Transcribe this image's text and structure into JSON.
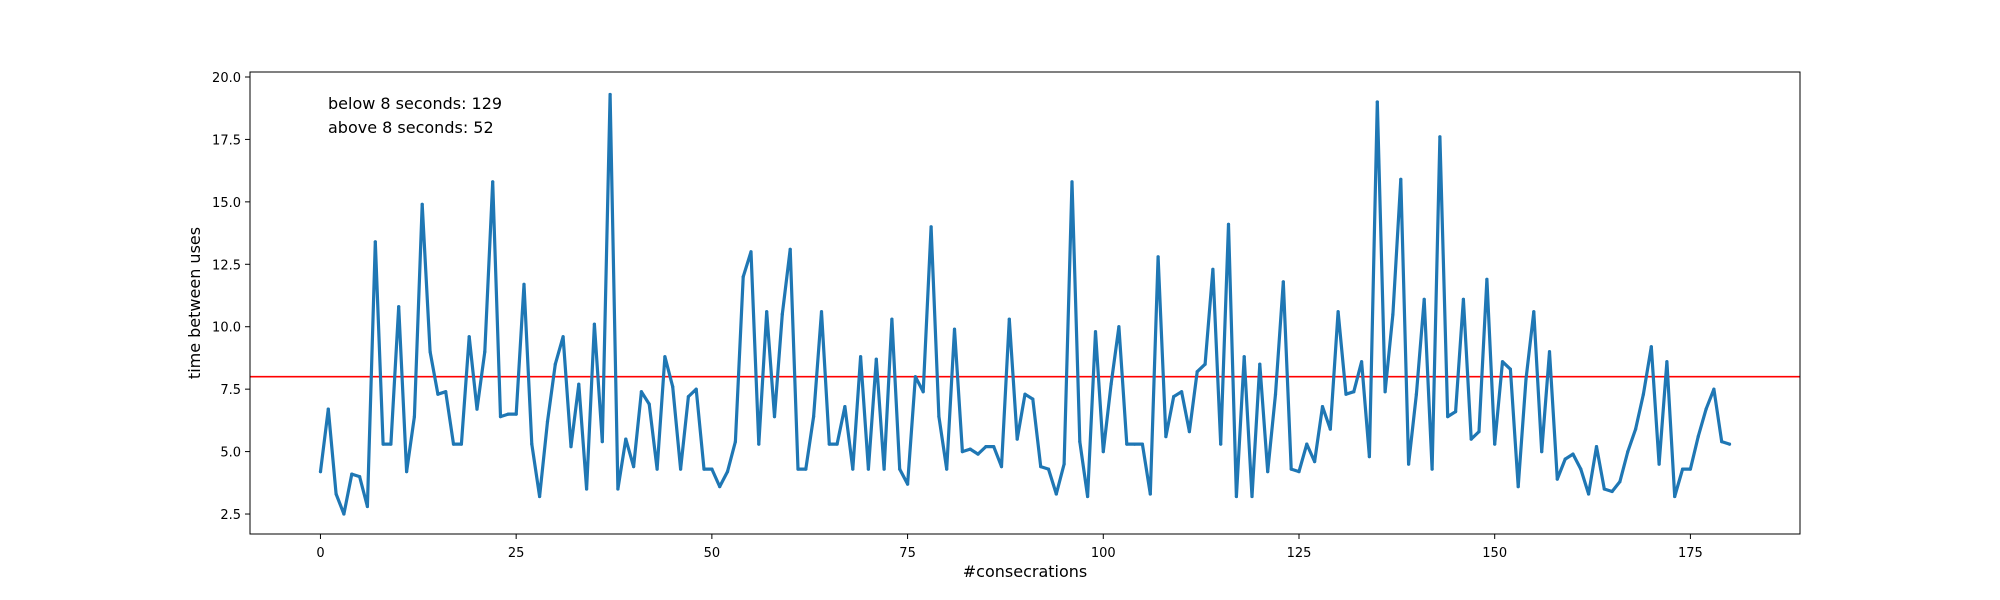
{
  "chart_data": {
    "type": "line",
    "xlabel": "#consecrations",
    "ylabel": "time between uses",
    "xlim": [
      -9,
      189
    ],
    "ylim": [
      1.7,
      20.2
    ],
    "xticks": [
      0,
      25,
      50,
      75,
      100,
      125,
      150,
      175
    ],
    "xtick_labels": [
      "0",
      "25",
      "50",
      "75",
      "100",
      "125",
      "150",
      "175"
    ],
    "yticks": [
      2.5,
      5.0,
      7.5,
      10.0,
      12.5,
      15.0,
      17.5,
      20.0
    ],
    "ytick_labels": [
      "2.5",
      "5.0",
      "7.5",
      "10.0",
      "12.5",
      "15.0",
      "17.5",
      "20.0"
    ],
    "grid": false,
    "threshold": {
      "y": 8,
      "color": "#ff0000"
    },
    "annotations": [
      "below 8 seconds: 129",
      "above 8 seconds: 52"
    ],
    "series": [
      {
        "color": "#1f77b4",
        "x": [
          0,
          1,
          2,
          3,
          4,
          5,
          6,
          7,
          8,
          9,
          10,
          11,
          12,
          13,
          14,
          15,
          16,
          17,
          18,
          19,
          20,
          21,
          22,
          23,
          24,
          25,
          26,
          27,
          28,
          29,
          30,
          31,
          32,
          33,
          34,
          35,
          36,
          37,
          38,
          39,
          40,
          41,
          42,
          43,
          44,
          45,
          46,
          47,
          48,
          49,
          50,
          51,
          52,
          53,
          54,
          55,
          56,
          57,
          58,
          59,
          60,
          61,
          62,
          63,
          64,
          65,
          66,
          67,
          68,
          69,
          70,
          71,
          72,
          73,
          74,
          75,
          76,
          77,
          78,
          79,
          80,
          81,
          82,
          83,
          84,
          85,
          86,
          87,
          88,
          89,
          90,
          91,
          92,
          93,
          94,
          95,
          96,
          97,
          98,
          99,
          100,
          101,
          102,
          103,
          104,
          105,
          106,
          107,
          108,
          109,
          110,
          111,
          112,
          113,
          114,
          115,
          116,
          117,
          118,
          119,
          120,
          121,
          122,
          123,
          124,
          125,
          126,
          127,
          128,
          129,
          130,
          131,
          132,
          133,
          134,
          135,
          136,
          137,
          138,
          139,
          140,
          141,
          142,
          143,
          144,
          145,
          146,
          147,
          148,
          149,
          150,
          151,
          152,
          153,
          154,
          155,
          156,
          157,
          158,
          159,
          160,
          161,
          162,
          163,
          164,
          165,
          166,
          167,
          168,
          169,
          170,
          171,
          172,
          173,
          174,
          175,
          176,
          177,
          178,
          179,
          180
        ],
        "y": [
          4.2,
          6.7,
          3.3,
          2.5,
          4.1,
          4.0,
          2.8,
          13.4,
          5.3,
          5.3,
          10.8,
          4.2,
          6.4,
          14.9,
          9.0,
          7.3,
          7.4,
          5.3,
          5.3,
          9.6,
          6.7,
          9.0,
          15.8,
          6.4,
          6.5,
          6.5,
          11.7,
          5.3,
          3.2,
          6.2,
          8.5,
          9.6,
          5.2,
          7.7,
          3.5,
          10.1,
          5.4,
          19.3,
          3.5,
          5.5,
          4.4,
          7.4,
          6.9,
          4.3,
          8.8,
          7.6,
          4.3,
          7.2,
          7.5,
          4.3,
          4.3,
          3.6,
          4.2,
          5.4,
          12.0,
          13.0,
          5.3,
          10.6,
          6.4,
          10.5,
          13.1,
          4.3,
          4.3,
          6.4,
          10.6,
          5.3,
          5.3,
          6.8,
          4.3,
          8.8,
          4.3,
          8.7,
          4.3,
          10.3,
          4.3,
          3.7,
          8.0,
          7.4,
          14.0,
          6.4,
          4.3,
          9.9,
          5.0,
          5.1,
          4.9,
          5.2,
          5.2,
          4.4,
          10.3,
          5.5,
          7.3,
          7.1,
          4.4,
          4.3,
          3.3,
          4.5,
          15.8,
          5.4,
          3.2,
          9.8,
          5.0,
          7.7,
          10.0,
          5.3,
          5.3,
          5.3,
          3.3,
          12.8,
          5.6,
          7.2,
          7.4,
          5.8,
          8.2,
          8.5,
          12.3,
          5.3,
          14.1,
          3.2,
          8.8,
          3.2,
          8.5,
          4.2,
          7.3,
          11.8,
          4.3,
          4.2,
          5.3,
          4.6,
          6.8,
          5.9,
          10.6,
          7.3,
          7.4,
          8.6,
          4.8,
          19.0,
          7.4,
          10.5,
          15.9,
          4.5,
          7.3,
          11.1,
          4.3,
          17.6,
          6.4,
          6.6,
          11.1,
          5.5,
          5.8,
          11.9,
          5.3,
          8.6,
          8.3,
          3.6,
          7.9,
          10.6,
          5.0,
          9.0,
          3.9,
          4.7,
          4.9,
          4.3,
          3.3,
          5.2,
          3.5,
          3.4,
          3.8,
          5.0,
          5.9,
          7.3,
          9.2,
          4.5,
          8.6,
          3.2,
          4.3,
          4.3,
          5.6,
          6.7,
          7.5,
          5.4,
          5.3
        ]
      }
    ]
  }
}
